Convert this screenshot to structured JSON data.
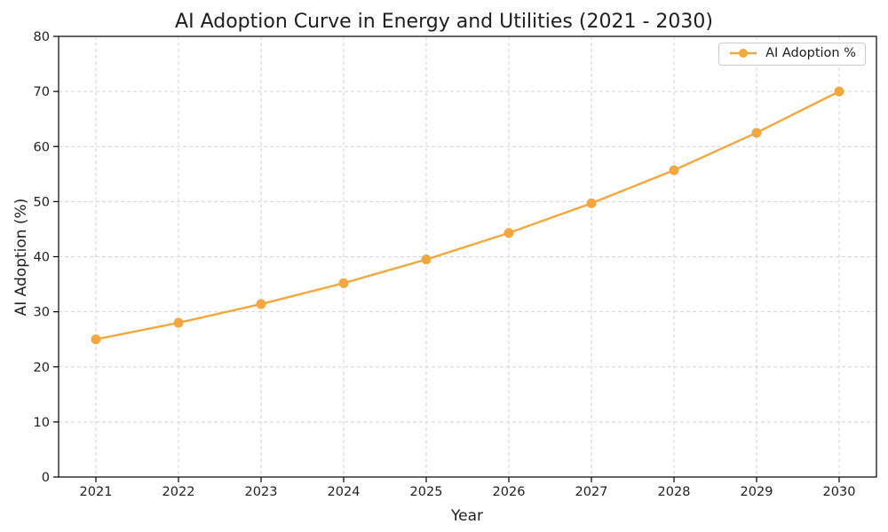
{
  "chart_data": {
    "type": "line",
    "title": "AI Adoption Curve in Energy and Utilities (2021 - 2030)",
    "xlabel": "Year",
    "ylabel": "AI Adoption (%)",
    "categories": [
      "2021",
      "2022",
      "2023",
      "2024",
      "2025",
      "2026",
      "2027",
      "2028",
      "2029",
      "2030"
    ],
    "series": [
      {
        "name": "AI Adoption %",
        "color": "#F2A83E",
        "marker": "circle",
        "values": [
          25.0,
          28.0,
          31.4,
          35.2,
          39.5,
          44.3,
          49.7,
          55.7,
          62.5,
          70.0
        ]
      }
    ],
    "ylim": [
      0,
      80
    ],
    "yticks": [
      0,
      10,
      20,
      30,
      40,
      50,
      60,
      70,
      80
    ],
    "grid": true,
    "grid_style": "dashed",
    "legend_position": "upper-right"
  },
  "colors": {
    "line": "#F2A83E",
    "grid": "#D5D5D5",
    "frame": "#000000",
    "text": "#1F1F1F",
    "legend_border": "#CCCCCC",
    "background": "#FFFFFF"
  }
}
